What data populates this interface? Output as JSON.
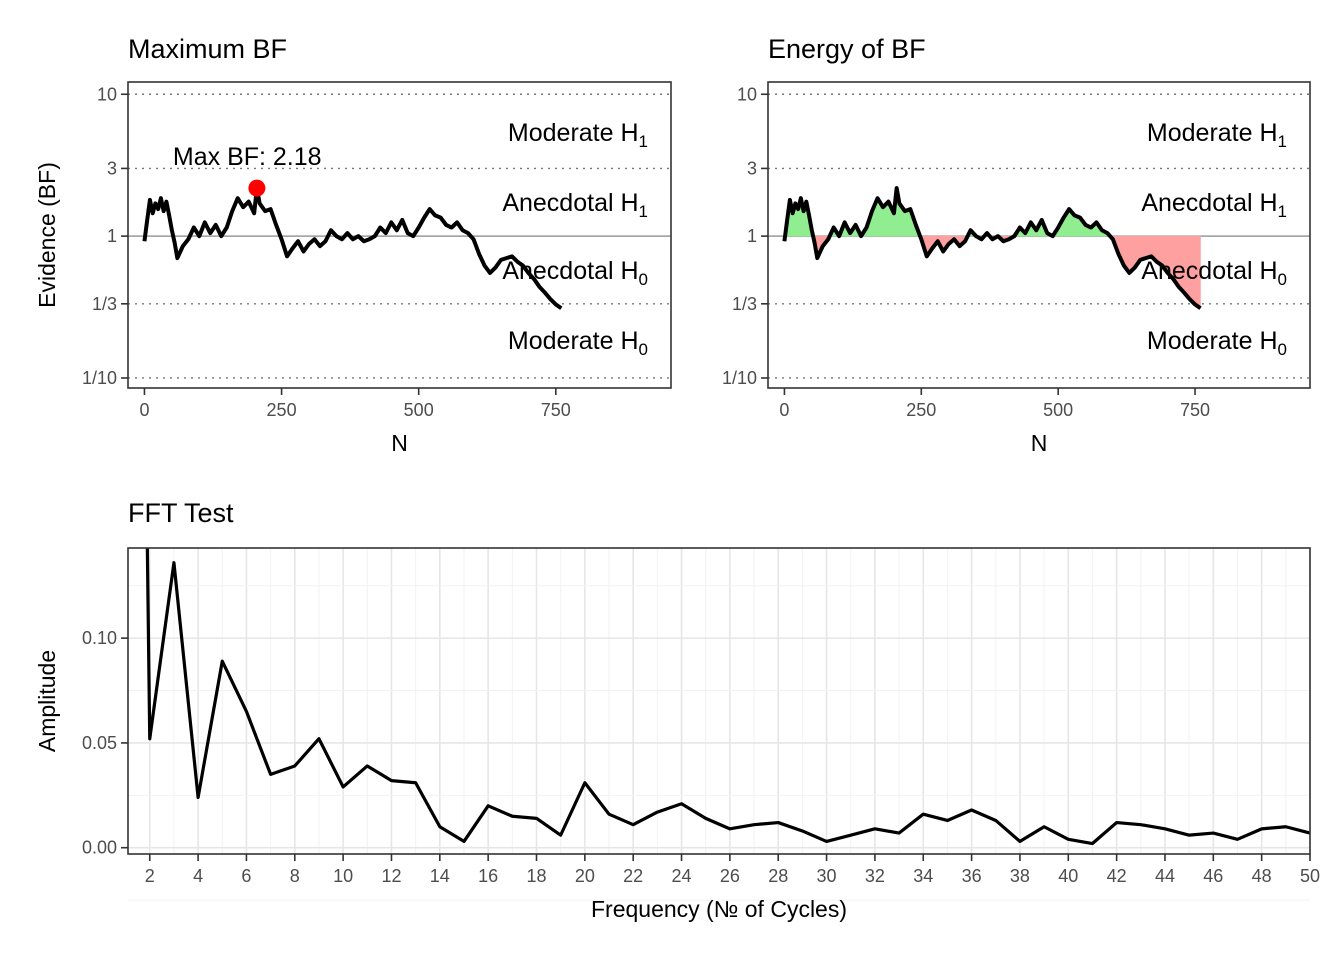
{
  "chart_data": [
    {
      "type": "line",
      "title": "Maximum BF",
      "xlabel": "N",
      "ylabel": "Evidence (BF)",
      "xlim": [
        -30,
        960
      ],
      "x_ticks": [
        "0",
        "250",
        "500",
        "750"
      ],
      "y_scale": "log",
      "y_ticks": [
        "10",
        "3",
        "1",
        "1/3",
        "1/10"
      ],
      "evidence_bands": [
        {
          "label": "Moderate H",
          "sub": "1",
          "y": 5.4
        },
        {
          "label": "Anecdotal H",
          "sub": "1",
          "y": 1.74
        },
        {
          "label": "Anecdotal H",
          "sub": "0",
          "y": 0.575
        },
        {
          "label": "Moderate H",
          "sub": "0",
          "y": 0.185
        }
      ],
      "annotation": {
        "label": "Max BF: 2.18",
        "x": 205,
        "y": 2.18
      },
      "series": [
        {
          "x": [
            0,
            5,
            10,
            15,
            20,
            25,
            30,
            35,
            40,
            45,
            50,
            55,
            60,
            70,
            80,
            90,
            100,
            110,
            120,
            130,
            140,
            150,
            160,
            170,
            180,
            190,
            200,
            205,
            210,
            220,
            230,
            240,
            250,
            260,
            270,
            280,
            290,
            300,
            310,
            320,
            330,
            340,
            350,
            360,
            370,
            380,
            390,
            400,
            410,
            420,
            430,
            440,
            450,
            460,
            470,
            480,
            490,
            500,
            510,
            520,
            530,
            540,
            550,
            560,
            570,
            580,
            590,
            600,
            610,
            620,
            630,
            640,
            650,
            660,
            670,
            680,
            690,
            700,
            710,
            720,
            730,
            740,
            750,
            760
          ],
          "y": [
            0.92,
            1.3,
            1.8,
            1.45,
            1.7,
            1.55,
            1.85,
            1.5,
            1.75,
            1.4,
            1.1,
            0.9,
            0.7,
            0.85,
            0.95,
            1.15,
            1.0,
            1.25,
            1.05,
            1.2,
            1.0,
            1.15,
            1.5,
            1.85,
            1.6,
            1.75,
            1.45,
            2.18,
            1.7,
            1.5,
            1.55,
            1.2,
            0.95,
            0.72,
            0.82,
            0.92,
            0.78,
            0.88,
            0.95,
            0.85,
            0.92,
            1.1,
            1.0,
            0.95,
            1.05,
            0.95,
            1.0,
            0.92,
            0.95,
            1.0,
            1.15,
            1.05,
            1.25,
            1.1,
            1.3,
            1.05,
            1.0,
            1.15,
            1.35,
            1.55,
            1.4,
            1.35,
            1.2,
            1.15,
            1.25,
            1.1,
            1.05,
            0.95,
            0.75,
            0.62,
            0.55,
            0.6,
            0.68,
            0.7,
            0.72,
            0.66,
            0.62,
            0.55,
            0.5,
            0.44,
            0.4,
            0.36,
            0.33,
            0.31
          ]
        }
      ]
    },
    {
      "type": "area",
      "title": "Energy of BF",
      "xlabel": "N",
      "ylabel": "",
      "xlim": [
        -30,
        960
      ],
      "x_ticks": [
        "0",
        "250",
        "500",
        "750"
      ],
      "y_scale": "log",
      "y_ticks": [
        "10",
        "3",
        "1",
        "1/3",
        "1/10"
      ],
      "evidence_bands": [
        {
          "label": "Moderate H",
          "sub": "1",
          "y": 5.4
        },
        {
          "label": "Anecdotal H",
          "sub": "1",
          "y": 1.74
        },
        {
          "label": "Anecdotal H",
          "sub": "0",
          "y": 0.575
        },
        {
          "label": "Moderate H",
          "sub": "0",
          "y": 0.185
        }
      ],
      "colors": {
        "above": "#90EE90",
        "below": "#FFA0A0"
      },
      "series": [
        {
          "x": [
            0,
            5,
            10,
            15,
            20,
            25,
            30,
            35,
            40,
            45,
            50,
            55,
            60,
            70,
            80,
            90,
            100,
            110,
            120,
            130,
            140,
            150,
            160,
            170,
            180,
            190,
            200,
            205,
            210,
            220,
            230,
            240,
            250,
            260,
            270,
            280,
            290,
            300,
            310,
            320,
            330,
            340,
            350,
            360,
            370,
            380,
            390,
            400,
            410,
            420,
            430,
            440,
            450,
            460,
            470,
            480,
            490,
            500,
            510,
            520,
            530,
            540,
            550,
            560,
            570,
            580,
            590,
            600,
            610,
            620,
            630,
            640,
            650,
            660,
            670,
            680,
            690,
            700,
            710,
            720,
            730,
            740,
            750,
            760
          ],
          "y": [
            0.92,
            1.3,
            1.8,
            1.45,
            1.7,
            1.55,
            1.85,
            1.5,
            1.75,
            1.4,
            1.1,
            0.9,
            0.7,
            0.85,
            0.95,
            1.15,
            1.0,
            1.25,
            1.05,
            1.2,
            1.0,
            1.15,
            1.5,
            1.85,
            1.6,
            1.75,
            1.45,
            2.18,
            1.7,
            1.5,
            1.55,
            1.2,
            0.95,
            0.72,
            0.82,
            0.92,
            0.78,
            0.88,
            0.95,
            0.85,
            0.92,
            1.1,
            1.0,
            0.95,
            1.05,
            0.95,
            1.0,
            0.92,
            0.95,
            1.0,
            1.15,
            1.05,
            1.25,
            1.1,
            1.3,
            1.05,
            1.0,
            1.15,
            1.35,
            1.55,
            1.4,
            1.35,
            1.2,
            1.15,
            1.25,
            1.1,
            1.05,
            0.95,
            0.75,
            0.62,
            0.55,
            0.6,
            0.68,
            0.7,
            0.72,
            0.66,
            0.62,
            0.55,
            0.5,
            0.44,
            0.4,
            0.36,
            0.33,
            0.31
          ]
        }
      ]
    },
    {
      "type": "line",
      "title": "FFT Test",
      "xlabel": "Frequency (№ of Cycles)",
      "ylabel": "Amplitude",
      "xlim": [
        1.1,
        50
      ],
      "ylim": [
        -0.003,
        0.143
      ],
      "x_ticks": [
        "2",
        "4",
        "6",
        "8",
        "10",
        "12",
        "14",
        "16",
        "18",
        "20",
        "22",
        "24",
        "26",
        "28",
        "30",
        "32",
        "34",
        "36",
        "38",
        "40",
        "42",
        "44",
        "46",
        "48",
        "50"
      ],
      "y_ticks": [
        "0.00",
        "0.05",
        "0.10"
      ],
      "series": [
        {
          "x": [
            1.9,
            2,
            3,
            4,
            5,
            6,
            7,
            8,
            9,
            10,
            11,
            12,
            13,
            14,
            15,
            16,
            17,
            18,
            19,
            20,
            21,
            22,
            23,
            24,
            25,
            26,
            27,
            28,
            29,
            30,
            31,
            32,
            33,
            34,
            35,
            36,
            37,
            38,
            39,
            40,
            41,
            42,
            43,
            44,
            45,
            46,
            47,
            48,
            49,
            50
          ],
          "y": [
            0.145,
            0.052,
            0.136,
            0.024,
            0.089,
            0.065,
            0.035,
            0.039,
            0.052,
            0.029,
            0.039,
            0.032,
            0.031,
            0.01,
            0.003,
            0.02,
            0.015,
            0.014,
            0.006,
            0.031,
            0.016,
            0.011,
            0.017,
            0.021,
            0.014,
            0.009,
            0.011,
            0.012,
            0.008,
            0.003,
            0.006,
            0.009,
            0.007,
            0.016,
            0.013,
            0.018,
            0.013,
            0.003,
            0.01,
            0.004,
            0.002,
            0.012,
            0.011,
            0.009,
            0.006,
            0.007,
            0.004,
            0.009,
            0.01,
            0.007
          ]
        }
      ]
    }
  ]
}
